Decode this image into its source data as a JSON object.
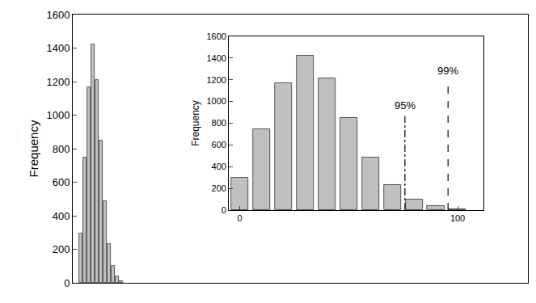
{
  "chart_data": [
    {
      "type": "bar",
      "ylabel": "Frequency",
      "bins": [
        -5,
        5,
        15,
        25,
        35,
        45,
        55,
        65,
        75,
        85,
        95,
        105
      ],
      "values": [
        295,
        745,
        1165,
        1420,
        1210,
        850,
        485,
        230,
        100,
        40,
        8
      ],
      "color": "#c0c0c0",
      "xlim": [
        -20,
        1110
      ],
      "ylim": [
        0,
        1600
      ],
      "yticks": [
        0,
        200,
        400,
        600,
        800,
        1000,
        1200,
        1400,
        1600
      ],
      "tick_labels": "y",
      "grid": false
    },
    {
      "type": "bar",
      "ylabel": "Frequency",
      "bins": [
        -5,
        5,
        15,
        25,
        35,
        45,
        55,
        65,
        75,
        85,
        95,
        105
      ],
      "values": [
        295,
        745,
        1165,
        1420,
        1210,
        850,
        485,
        230,
        100,
        40,
        8
      ],
      "color": "#c0c0c0",
      "xlim": [
        -5,
        112
      ],
      "ylim": [
        0,
        1600
      ],
      "xticks": [
        0,
        100
      ],
      "yticks": [
        0,
        200,
        400,
        600,
        800,
        1000,
        1200,
        1400,
        1600
      ],
      "grid": false,
      "annotations": [
        {
          "x": 75.8,
          "text": "95%",
          "line_style": "dashdot"
        },
        {
          "x": 95.6,
          "text": "99%",
          "line_style": "dash"
        }
      ]
    }
  ]
}
